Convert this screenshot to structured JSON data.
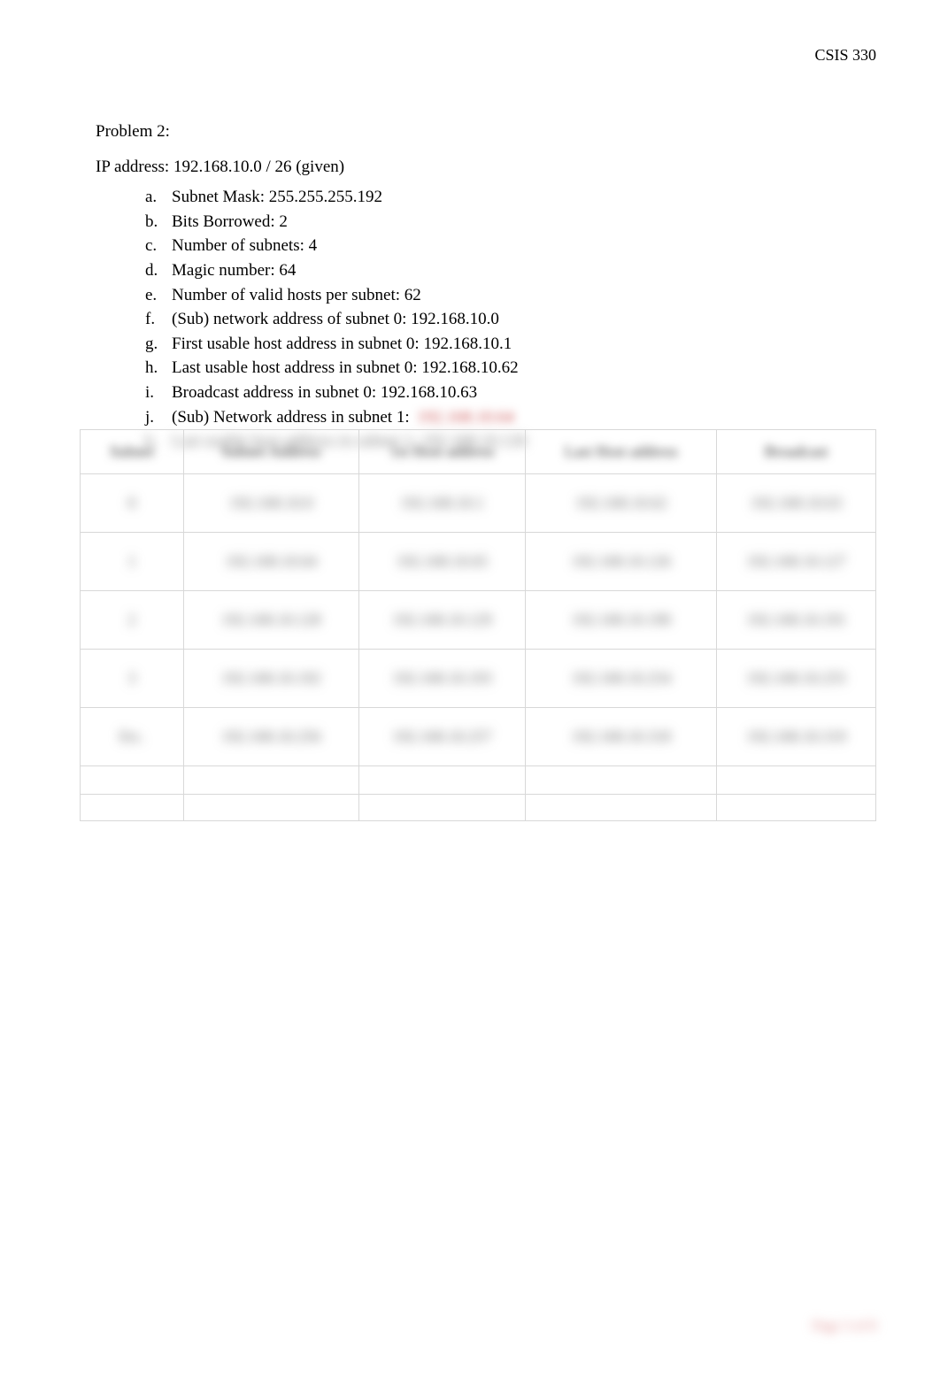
{
  "header": {
    "course": "CSIS 330"
  },
  "problem": {
    "title": "Problem 2:",
    "ip_line": "IP address: 192.168.10.0 / 26 (given)",
    "items": [
      {
        "letter": "a.",
        "text": "Subnet Mask: 255.255.255.192"
      },
      {
        "letter": "b.",
        "text": "Bits Borrowed: 2"
      },
      {
        "letter": "c.",
        "text": "Number of subnets: 4"
      },
      {
        "letter": "d.",
        "text": "Magic number: 64"
      },
      {
        "letter": "e.",
        "text": "Number of valid hosts per subnet: 62"
      },
      {
        "letter": "f.",
        "text": "(Sub) network address of subnet 0: 192.168.10.0"
      },
      {
        "letter": "g.",
        "text": "First usable host address in subnet 0: 192.168.10.1"
      },
      {
        "letter": "h.",
        "text": "Last usable host address in subnet 0: 192.168.10.62"
      },
      {
        "letter": "i.",
        "text": "Broadcast address in subnet 0: 192.168.10.63"
      },
      {
        "letter": "j.",
        "text": "(Sub) Network address in subnet 1:"
      }
    ],
    "blurred_j_answer": "192.168.10.64",
    "blurred_k": {
      "letter": "k.",
      "text": "Last usable host address in subnet 1:",
      "answer": "192.168.10.126"
    }
  },
  "table": {
    "headers": [
      "Subnet",
      "Subnet Address",
      "1st Host address",
      "Last Host address",
      "Broadcast"
    ],
    "rows": [
      [
        "0",
        "192.168.10.0",
        "192.168.10.1",
        "192.168.10.62",
        "192.168.10.63"
      ],
      [
        "1",
        "192.168.10.64",
        "192.168.10.65",
        "192.168.10.126",
        "192.168.10.127"
      ],
      [
        "2",
        "192.168.10.128",
        "192.168.10.129",
        "192.168.10.190",
        "192.168.10.191"
      ],
      [
        "3",
        "192.168.10.192",
        "192.168.10.193",
        "192.168.10.254",
        "192.168.10.255"
      ],
      [
        "Etc.",
        "192.168.10.256",
        "192.168.10.257",
        "192.168.10.318",
        "192.168.10.319"
      ]
    ],
    "col_classes": [
      "col-a",
      "col-b",
      "col-c",
      "col-d",
      "col-e"
    ]
  },
  "footer": {
    "page": "Page 3 of 8"
  }
}
